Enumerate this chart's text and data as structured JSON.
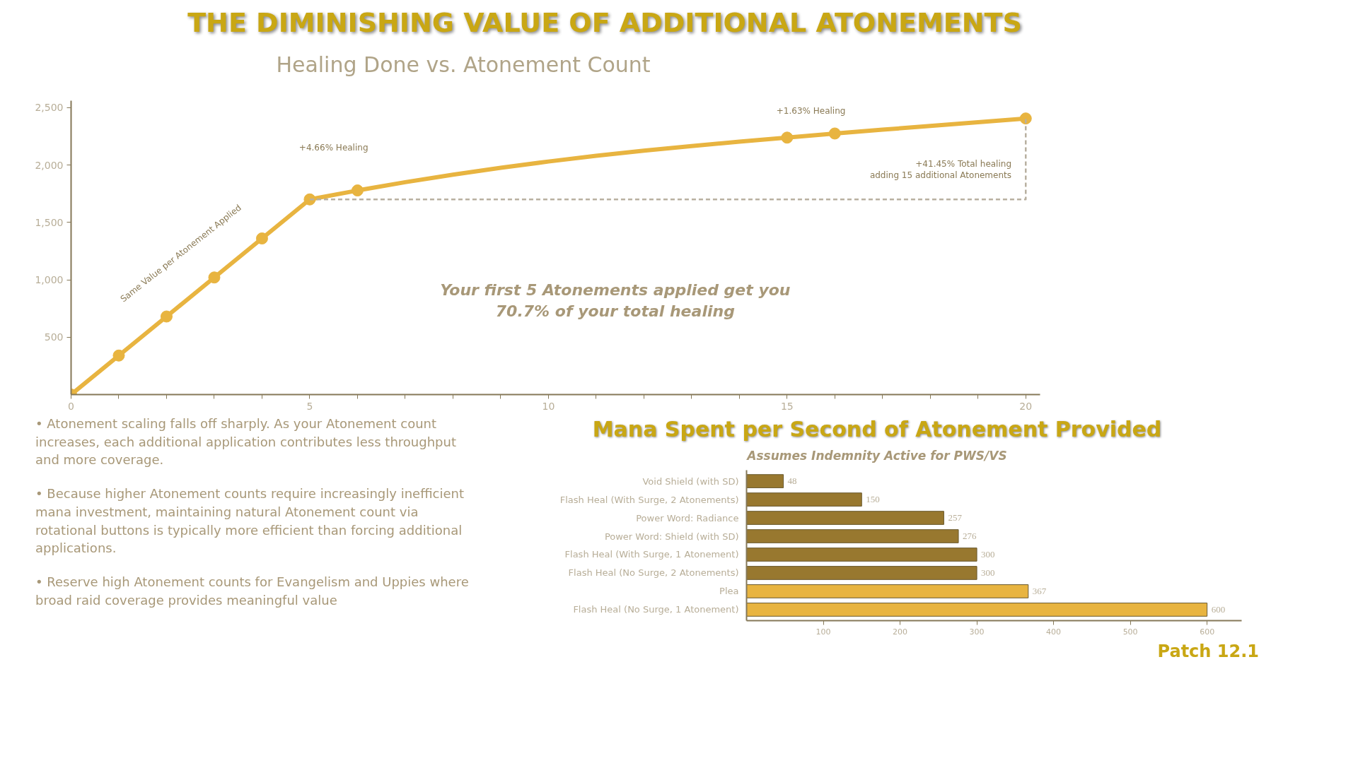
{
  "chart_data": [
    {
      "type": "line",
      "title": "THE DIMINISHING VALUE OF ADDITIONAL ATONEMENTS",
      "subtitle": "Healing Done vs. Atonement Count",
      "x": [
        0,
        1,
        2,
        3,
        4,
        5,
        6,
        7,
        8,
        9,
        10,
        11,
        12,
        13,
        14,
        15,
        16,
        17,
        18,
        19,
        20
      ],
      "series": [
        {
          "type": "line",
          "color": "#e8b440",
          "marker": "none",
          "values": [
            0,
            340,
            680,
            1020,
            1360,
            1700,
            1778,
            1850,
            1915,
            1975,
            2030,
            2080,
            2125,
            2165,
            2203,
            2238,
            2274,
            2307,
            2340,
            2373,
            2405
          ]
        },
        {
          "type": "scatter",
          "color": "#e8b440",
          "marker": "circle",
          "x": [
            0,
            1,
            2,
            3,
            4,
            5,
            6,
            15,
            16,
            20
          ],
          "values": [
            0,
            340,
            680,
            1020,
            1360,
            1700,
            1778,
            2238,
            2274,
            2405
          ]
        },
        {
          "type": "line",
          "color": "#b8b0a0",
          "marker": "none",
          "line_style": "dashed",
          "x": [
            5,
            20,
            20
          ],
          "values": [
            1700,
            1700,
            2405
          ]
        }
      ],
      "xlim": [
        0,
        20.3
      ],
      "ylim": [
        0,
        2560
      ],
      "xticks": [
        0,
        {
          "value": 1,
          "label": null
        },
        {
          "value": 2,
          "label": null
        },
        {
          "value": 3,
          "label": null
        },
        {
          "value": 4,
          "label": null
        },
        5,
        {
          "value": 6,
          "label": null
        },
        {
          "value": 7,
          "label": null
        },
        {
          "value": 8,
          "label": null
        },
        {
          "value": 9,
          "label": null
        },
        10,
        {
          "value": 11,
          "label": null
        },
        {
          "value": 12,
          "label": null
        },
        {
          "value": 13,
          "label": null
        },
        {
          "value": 14,
          "label": null
        },
        15,
        {
          "value": 16,
          "label": null
        },
        {
          "value": 17,
          "label": null
        },
        {
          "value": 18,
          "label": null
        },
        {
          "value": 19,
          "label": null
        },
        20
      ],
      "yticks": [
        {
          "value": 500,
          "label": "500"
        },
        {
          "value": 1000,
          "label": "1,000"
        },
        {
          "value": 1500,
          "label": "1,500"
        },
        {
          "value": 2000,
          "label": "2,000"
        },
        {
          "value": 2500,
          "label": "2,500"
        }
      ],
      "grid": false,
      "annotations": [
        "+4.66% Healing",
        "+1.63% Healing",
        "+41.45% Total healing\nadding 15 additional Atonements",
        "Same Value per Atonement Applied",
        "Your first 5 Atonements applied get you\n70.7% of your total healing",
        "• Atonement scaling falls off sharply. As your Atonement count increases, each additional application contributes less throughput and more coverage.",
        "• Because higher Atonement counts require increasingly inefficient mana investment, maintaining natural Atonement count via rotational buttons is typically more efficient than forcing additional applications.",
        "• Reserve high Atonement counts for Evangelism and Uppies where broad raid coverage provides meaningful value"
      ]
    },
    {
      "type": "bar",
      "orientation": "horizontal",
      "title": "Mana Spent per Second of Atonement Provided",
      "subtitle": "Assumes Indemnity Active for PWS/VS",
      "categories": [
        "Void Shield (with SD)",
        "Flash Heal (With Surge, 2 Atonements)",
        "Power Word: Radiance",
        "Power Word: Shield (with SD)",
        "Flash Heal (With Surge, 1 Atonement)",
        "Flash Heal (No Surge, 2 Atonements)",
        "Plea",
        "Flash Heal (No Surge, 1 Atonement)"
      ],
      "values": [
        48,
        150,
        257,
        276,
        300,
        300,
        367,
        600
      ],
      "colors": [
        "#98782f",
        "#98782f",
        "#98782f",
        "#98782f",
        "#98782f",
        "#98782f",
        "#e8b440",
        "#e8b440"
      ],
      "xlim": [
        0,
        645
      ],
      "xticks": [
        100,
        200,
        300,
        400,
        500,
        600
      ],
      "data_labels": true,
      "grid": false,
      "annotations": [
        "Patch 12.1"
      ]
    }
  ]
}
